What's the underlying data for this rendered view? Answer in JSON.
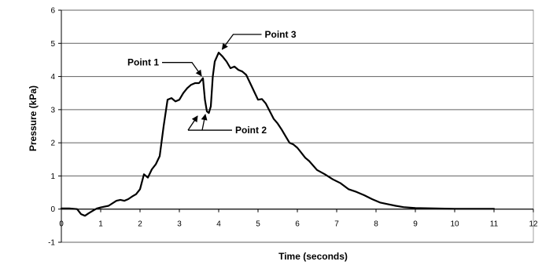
{
  "chart_data": {
    "type": "line",
    "title": "",
    "xlabel": "Time (seconds)",
    "ylabel": "Pressure (kPa)",
    "xlim": [
      0,
      12
    ],
    "ylim": [
      -1,
      6
    ],
    "xticks": [
      "0",
      "1",
      "2",
      "3",
      "4",
      "5",
      "6",
      "7",
      "8",
      "9",
      "10",
      "11",
      "12"
    ],
    "yticks": [
      "-1",
      "0",
      "1",
      "2",
      "3",
      "4",
      "5",
      "6"
    ],
    "grid": "horizontal",
    "legend": "none",
    "line_color": "#000000",
    "series": [
      {
        "x": [
          0,
          0.2,
          0.4,
          0.5,
          0.6,
          0.7,
          0.8,
          0.9,
          1.0,
          1.2,
          1.4,
          1.5,
          1.6,
          1.7,
          1.8,
          1.9,
          2.0,
          2.1,
          2.2,
          2.3,
          2.4,
          2.5,
          2.6,
          2.7,
          2.8,
          2.9,
          3.0,
          3.1,
          3.2,
          3.3,
          3.4,
          3.5,
          3.6,
          3.65,
          3.7,
          3.75,
          3.8,
          3.85,
          3.9,
          4.0,
          4.1,
          4.2,
          4.3,
          4.4,
          4.5,
          4.6,
          4.7,
          4.8,
          4.9,
          5.0,
          5.1,
          5.2,
          5.3,
          5.4,
          5.5,
          5.6,
          5.7,
          5.8,
          5.9,
          6.0,
          6.1,
          6.2,
          6.3,
          6.5,
          6.7,
          6.9,
          7.1,
          7.3,
          7.5,
          7.7,
          7.9,
          8.1,
          8.3,
          8.5,
          8.7,
          9.0,
          9.5,
          10.0,
          10.5,
          11.0
        ],
        "y": [
          0.02,
          0.02,
          0.0,
          -0.15,
          -0.2,
          -0.12,
          -0.05,
          0.02,
          0.05,
          0.1,
          0.25,
          0.28,
          0.25,
          0.3,
          0.38,
          0.45,
          0.6,
          1.05,
          0.95,
          1.2,
          1.35,
          1.6,
          2.5,
          3.3,
          3.35,
          3.25,
          3.3,
          3.5,
          3.65,
          3.75,
          3.8,
          3.8,
          3.95,
          3.3,
          2.95,
          2.9,
          3.1,
          4.0,
          4.45,
          4.72,
          4.6,
          4.45,
          4.25,
          4.3,
          4.2,
          4.15,
          4.05,
          3.8,
          3.55,
          3.3,
          3.32,
          3.18,
          2.95,
          2.72,
          2.58,
          2.4,
          2.2,
          2.0,
          1.95,
          1.85,
          1.7,
          1.55,
          1.45,
          1.18,
          1.05,
          0.9,
          0.78,
          0.6,
          0.52,
          0.42,
          0.3,
          0.2,
          0.15,
          0.1,
          0.06,
          0.03,
          0.02,
          0.01,
          0.01,
          0.01
        ]
      }
    ],
    "annotations": [
      {
        "text": "Point 1",
        "x": 3.6,
        "y": 3.95
      },
      {
        "text": "Point 2",
        "x": 3.7,
        "y": 2.9
      },
      {
        "text": "Point 3",
        "x": 4.05,
        "y": 4.75
      }
    ]
  }
}
